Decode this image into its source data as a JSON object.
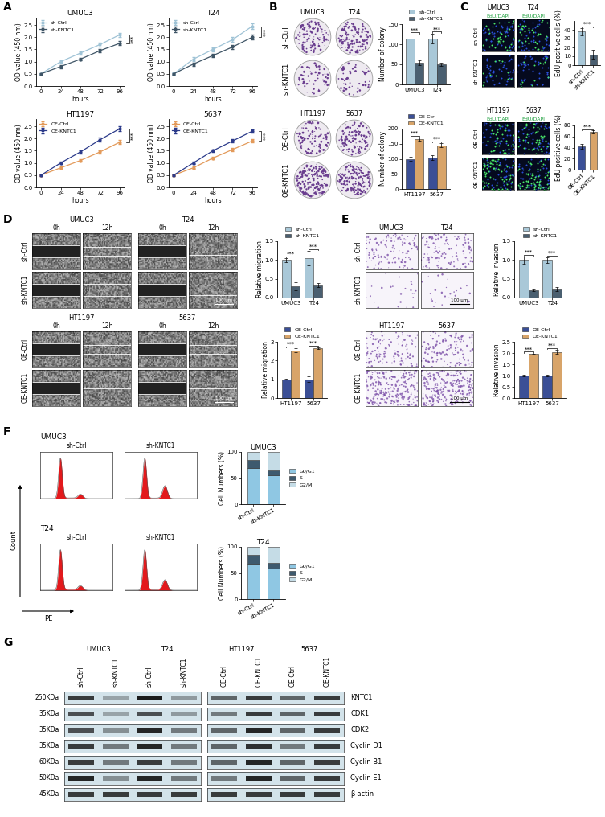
{
  "panel_labels": [
    "A",
    "B",
    "C",
    "D",
    "E",
    "F",
    "G"
  ],
  "chart_data": [
    {
      "type": "line",
      "title": "UMUC3",
      "x_label": "hours",
      "y_label": "OD value (450 nm)",
      "x": [
        0,
        24,
        48,
        72,
        96
      ],
      "xlim": [
        -6,
        102
      ],
      "xticks": [
        0,
        24,
        48,
        72,
        96
      ],
      "ylim": [
        0,
        2.8
      ],
      "yticks": [
        {
          "value": 0,
          "label": "0.0"
        },
        0.5,
        {
          "value": 1,
          "label": "1.0"
        },
        1.5,
        {
          "value": 2,
          "label": "2.0"
        },
        2.5
      ],
      "legend": "upper left",
      "annotations": [
        "***"
      ],
      "series": [
        {
          "name": "sh-Ctrl",
          "color": "#9fc3d6",
          "marker": "o",
          "values": [
            0.5,
            1.0,
            1.35,
            1.7,
            2.1
          ],
          "errors": [
            0.04,
            0.06,
            0.07,
            0.08,
            0.09
          ]
        },
        {
          "name": "sh-KNTC1",
          "color": "#3f5566",
          "marker": "o",
          "values": [
            0.5,
            0.8,
            1.1,
            1.45,
            1.75
          ],
          "errors": [
            0.04,
            0.06,
            0.06,
            0.07,
            0.08
          ]
        }
      ]
    },
    {
      "type": "line",
      "title": "T24",
      "x_label": "hours",
      "y_label": "OD value (450 nm)",
      "x": [
        0,
        24,
        48,
        72,
        96
      ],
      "xlim": [
        -6,
        102
      ],
      "xticks": [
        0,
        24,
        48,
        72,
        96
      ],
      "ylim": [
        0,
        2.8
      ],
      "yticks": [
        {
          "value": 0,
          "label": "0.0"
        },
        0.5,
        {
          "value": 1,
          "label": "1.0"
        },
        1.5,
        {
          "value": 2,
          "label": "2.0"
        },
        2.5
      ],
      "legend": "upper left",
      "annotations": [
        "***"
      ],
      "series": [
        {
          "name": "sh-Ctrl",
          "color": "#9fc3d6",
          "marker": "o",
          "values": [
            0.5,
            1.1,
            1.5,
            1.9,
            2.45
          ],
          "errors": [
            0.05,
            0.08,
            0.09,
            0.1,
            0.12
          ]
        },
        {
          "name": "sh-KNTC1",
          "color": "#3f5566",
          "marker": "o",
          "values": [
            0.5,
            0.9,
            1.25,
            1.6,
            2.0
          ],
          "errors": [
            0.04,
            0.07,
            0.08,
            0.08,
            0.1
          ]
        }
      ]
    },
    {
      "type": "line",
      "title": "HT1197",
      "x_label": "hours",
      "y_label": "OD value (450 nm)",
      "x": [
        0,
        24,
        48,
        72,
        96
      ],
      "xlim": [
        -6,
        102
      ],
      "xticks": [
        0,
        24,
        48,
        72,
        96
      ],
      "ylim": [
        0,
        2.8
      ],
      "yticks": [
        {
          "value": 0,
          "label": "0.0"
        },
        0.5,
        {
          "value": 1,
          "label": "1.0"
        },
        1.5,
        {
          "value": 2,
          "label": "2.0"
        },
        2.5
      ],
      "legend": "upper left",
      "annotations": [
        "***"
      ],
      "series": [
        {
          "name": "OE-Ctrl",
          "color": "#e39a5a",
          "marker": "o",
          "values": [
            0.5,
            0.8,
            1.1,
            1.45,
            1.85
          ],
          "errors": [
            0.04,
            0.05,
            0.06,
            0.07,
            0.08
          ]
        },
        {
          "name": "OE-KNTC1",
          "color": "#2b3a8a",
          "marker": "o",
          "values": [
            0.5,
            1.0,
            1.45,
            1.95,
            2.4
          ],
          "errors": [
            0.04,
            0.06,
            0.07,
            0.08,
            0.1
          ]
        }
      ]
    },
    {
      "type": "line",
      "title": "5637",
      "x_label": "hours",
      "y_label": "OD value (450 nm)",
      "x": [
        0,
        24,
        48,
        72,
        96
      ],
      "xlim": [
        -6,
        102
      ],
      "xticks": [
        0,
        24,
        48,
        72,
        96
      ],
      "ylim": [
        0,
        2.8
      ],
      "yticks": [
        {
          "value": 0,
          "label": "0.0"
        },
        0.5,
        {
          "value": 1,
          "label": "1.0"
        },
        1.5,
        {
          "value": 2,
          "label": "2.0"
        },
        2.5
      ],
      "legend": "upper left",
      "annotations": [
        "***"
      ],
      "series": [
        {
          "name": "OE-Ctrl",
          "color": "#e39a5a",
          "marker": "o",
          "values": [
            0.5,
            0.8,
            1.2,
            1.55,
            1.9
          ],
          "errors": [
            0.04,
            0.05,
            0.06,
            0.06,
            0.07
          ]
        },
        {
          "name": "OE-KNTC1",
          "color": "#2b3a8a",
          "marker": "o",
          "values": [
            0.5,
            1.0,
            1.5,
            1.9,
            2.3
          ],
          "errors": [
            0.04,
            0.05,
            0.06,
            0.07,
            0.06
          ]
        }
      ]
    },
    {
      "type": "bar",
      "y_label": "Number of colony",
      "categories": [
        "UMUC3",
        "T24"
      ],
      "ylim": [
        0,
        150
      ],
      "yticks": [
        0,
        50,
        100,
        150
      ],
      "legend": "top",
      "annotations": [
        "***",
        "***"
      ],
      "series": [
        {
          "name": "sh-Ctrl",
          "color": "#a9c8d8",
          "values": [
            115,
            115
          ],
          "errors": [
            10,
            12
          ]
        },
        {
          "name": "sh-KNTC1",
          "color": "#4a5f70",
          "values": [
            55,
            50
          ],
          "errors": [
            6,
            4
          ]
        }
      ]
    },
    {
      "type": "bar",
      "y_label": "Number of colony",
      "categories": [
        "HT1197",
        "5637"
      ],
      "ylim": [
        0,
        200
      ],
      "yticks": [
        0,
        50,
        100,
        150,
        200
      ],
      "legend": "top",
      "annotations": [
        "***",
        "***"
      ],
      "series": [
        {
          "name": "OE-Ctrl",
          "color": "#3b4f96",
          "values": [
            100,
            105
          ],
          "errors": [
            6,
            8
          ]
        },
        {
          "name": "OE-KNTC1",
          "color": "#d8a469",
          "values": [
            165,
            145
          ],
          "errors": [
            5,
            6
          ]
        }
      ]
    },
    {
      "type": "bar",
      "y_label": "EdU positive cells (%)",
      "categories": [
        "sh-Ctrl",
        "sh-KNTC1"
      ],
      "values": [
        38,
        12
      ],
      "errors": [
        4,
        5
      ],
      "colors": [
        "#a9c8d8",
        "#4a5f70"
      ],
      "ylim": [
        0,
        50
      ],
      "yticks": [
        0,
        10,
        20,
        30,
        40
      ],
      "annotations": [
        "***"
      ]
    },
    {
      "type": "bar",
      "y_label": "EdU positive cells (%)",
      "categories": [
        "OE-Ctrl",
        "OE-KNTC1"
      ],
      "values": [
        42,
        68
      ],
      "errors": [
        4,
        3
      ],
      "colors": [
        "#3b4f96",
        "#d8a469"
      ],
      "ylim": [
        0,
        80
      ],
      "yticks": [
        0,
        20,
        40,
        60,
        80
      ],
      "annotations": [
        "***"
      ]
    },
    {
      "type": "bar",
      "y_label": "Relative migration",
      "categories": [
        "UMUC3",
        "T24"
      ],
      "ylim": [
        0,
        1.5
      ],
      "yticks": [
        {
          "value": 0,
          "label": "0.0"
        },
        0.5,
        {
          "value": 1,
          "label": "1.0"
        },
        1.5
      ],
      "legend": "top",
      "annotations": [
        "***",
        "***"
      ],
      "series": [
        {
          "name": "sh-Ctrl",
          "color": "#a9c8d8",
          "values": [
            1.0,
            1.05
          ],
          "errors": [
            0.05,
            0.2
          ]
        },
        {
          "name": "sh-KNTC1",
          "color": "#4a5f70",
          "values": [
            0.3,
            0.33
          ],
          "errors": [
            0.1,
            0.05
          ]
        }
      ]
    },
    {
      "type": "bar",
      "y_label": "Relative migration",
      "categories": [
        "HT1197",
        "5637"
      ],
      "ylim": [
        0,
        3
      ],
      "yticks": [
        0,
        1,
        2,
        3
      ],
      "legend": "top",
      "annotations": [
        "***",
        "***"
      ],
      "series": [
        {
          "name": "OE-Ctrl",
          "color": "#3b4f96",
          "values": [
            1.0,
            1.0
          ],
          "errors": [
            0.03,
            0.15
          ]
        },
        {
          "name": "OE-KNTC1",
          "color": "#d8a469",
          "values": [
            2.55,
            2.65
          ],
          "errors": [
            0.1,
            0.05
          ]
        }
      ]
    },
    {
      "type": "bar",
      "y_label": "Relative invasion",
      "categories": [
        "UMUC3",
        "T24"
      ],
      "ylim": [
        0,
        1.5
      ],
      "yticks": [
        {
          "value": 0,
          "label": "0.0"
        },
        0.5,
        {
          "value": 1,
          "label": "1.0"
        },
        1.5
      ],
      "legend": "top",
      "annotations": [
        "***",
        "***"
      ],
      "series": [
        {
          "name": "sh-Ctrl",
          "color": "#a9c8d8",
          "values": [
            1.0,
            1.0
          ],
          "errors": [
            0.1,
            0.08
          ]
        },
        {
          "name": "sh-KNTC1",
          "color": "#4a5f70",
          "values": [
            0.2,
            0.22
          ],
          "errors": [
            0.02,
            0.05
          ]
        }
      ]
    },
    {
      "type": "bar",
      "y_label": "Relative invasion",
      "categories": [
        "HT1197",
        "5637"
      ],
      "ylim": [
        0,
        2.5
      ],
      "yticks": [
        {
          "value": 0,
          "label": "0.0"
        },
        0.5,
        {
          "value": 1,
          "label": "1.0"
        },
        1.5,
        {
          "value": 2,
          "label": "2.0"
        },
        2.5
      ],
      "legend": "top",
      "annotations": [
        "***",
        "***"
      ],
      "series": [
        {
          "name": "OE-Ctrl",
          "color": "#3b4f96",
          "values": [
            1.0,
            1.0
          ],
          "errors": [
            0.02,
            0.02
          ]
        },
        {
          "name": "OE-KNTC1",
          "color": "#d8a469",
          "values": [
            1.95,
            2.05
          ],
          "errors": [
            0.03,
            0.1
          ]
        }
      ]
    },
    {
      "type": "bar",
      "stacked": true,
      "title": "UMUC3",
      "y_label": "Cell Numbers (%)",
      "categories": [
        "sh-Ctrl",
        "sh-KNTC1"
      ],
      "ylim": [
        0,
        100
      ],
      "yticks": [
        0,
        50,
        100
      ],
      "legend": "right",
      "series": [
        {
          "name": "G0/G1",
          "color": "#8fc7e3",
          "values": [
            70,
            55
          ]
        },
        {
          "name": "S",
          "color": "#3e5a6e",
          "values": [
            15,
            10
          ]
        },
        {
          "name": "G2/M",
          "color": "#c5dce6",
          "values": [
            15,
            35
          ]
        }
      ]
    },
    {
      "type": "bar",
      "stacked": true,
      "title": "T24",
      "y_label": "Cell Numbers (%)",
      "categories": [
        "sh-Ctrl",
        "sh-KNTC1"
      ],
      "ylim": [
        0,
        100
      ],
      "yticks": [
        0,
        50,
        100
      ],
      "legend": "right",
      "series": [
        {
          "name": "G0/G1",
          "color": "#8fc7e3",
          "values": [
            68,
            58
          ]
        },
        {
          "name": "S",
          "color": "#3e5a6e",
          "values": [
            17,
            12
          ]
        },
        {
          "name": "G2/M",
          "color": "#c5dce6",
          "values": [
            15,
            30
          ]
        }
      ]
    }
  ],
  "colony_images": [
    {
      "columns": [
        "UMUC3",
        "T24"
      ],
      "rows": [
        "sh-Ctrl",
        "sh-KNTC1"
      ]
    },
    {
      "columns": [
        "HT1197",
        "5637"
      ],
      "rows": [
        "OE-Ctrl",
        "OE-KNTC1"
      ]
    }
  ],
  "edu_images": [
    {
      "columns": [
        "UMUC3",
        "T24"
      ],
      "stain": "EdU/DAPI",
      "rows": [
        "sh-Ctrl",
        "sh-KNTC1"
      ]
    },
    {
      "columns": [
        "HT1197",
        "5637"
      ],
      "stain": "EdU/DAPI",
      "rows": [
        "OE-Ctrl",
        "OE-KNTC1"
      ]
    }
  ],
  "wound_images": [
    {
      "columns": [
        "UMUC3",
        "T24"
      ],
      "times": [
        "0h",
        "12h"
      ],
      "rows": [
        "sh-Ctrl",
        "sh-KNTC1"
      ],
      "scale_bar": "100 μm"
    },
    {
      "columns": [
        "HT1197",
        "5637"
      ],
      "times": [
        "0h",
        "12h"
      ],
      "rows": [
        "OE-Ctrl",
        "OE-KNTC1"
      ],
      "scale_bar": "100 μm"
    }
  ],
  "invasion_images": [
    {
      "columns": [
        "UMUC3",
        "T24"
      ],
      "rows": [
        "sh-Ctrl",
        "sh-KNTC1"
      ],
      "scale_bar": "100 μm"
    },
    {
      "columns": [
        "HT1197",
        "5637"
      ],
      "rows": [
        "OE-Ctrl",
        "OE-KNTC1"
      ],
      "scale_bar": "100 μm"
    }
  ],
  "flow_panels": {
    "x_label": "PE",
    "y_label": "Count",
    "groups": [
      {
        "title": "UMUC3",
        "samples": [
          "sh-Ctrl",
          "sh-KNTC1"
        ]
      },
      {
        "title": "T24",
        "samples": [
          "sh-Ctrl",
          "sh-KNTC1"
        ]
      }
    ]
  },
  "western_blot": {
    "cell_lines": [
      "UMUC3",
      "T24",
      "HT1197",
      "5637"
    ],
    "lanes": [
      "sh-Ctrl",
      "sh-KNTC1",
      "sh-Ctrl",
      "sh-KNTC1",
      "OE-Ctrl",
      "OE-KNTC1",
      "OE-Ctrl",
      "OE-KNTC1"
    ],
    "proteins": [
      {
        "size": "250KDa",
        "name": "KNTC1",
        "bands": [
          0.8,
          0.3,
          0.95,
          0.35,
          0.6,
          0.8,
          0.6,
          0.8
        ]
      },
      {
        "size": "35KDa",
        "name": "CDK1",
        "bands": [
          0.7,
          0.3,
          0.7,
          0.35,
          0.5,
          0.8,
          0.6,
          0.8
        ]
      },
      {
        "size": "35KDa",
        "name": "CDK2",
        "bands": [
          0.7,
          0.4,
          0.9,
          0.5,
          0.6,
          0.9,
          0.6,
          0.8
        ]
      },
      {
        "size": "35KDa",
        "name": "Cyclin D1",
        "bands": [
          0.8,
          0.5,
          0.9,
          0.5,
          0.6,
          0.85,
          0.5,
          0.8
        ]
      },
      {
        "size": "60KDa",
        "name": "Cyclin B1",
        "bands": [
          0.8,
          0.5,
          0.8,
          0.5,
          0.6,
          0.9,
          0.6,
          0.8
        ]
      },
      {
        "size": "50KDa",
        "name": "Cyclin E1",
        "bands": [
          0.9,
          0.4,
          0.9,
          0.5,
          0.5,
          0.9,
          0.6,
          0.8
        ]
      },
      {
        "size": "45KDa",
        "name": "β-actin",
        "bands": [
          0.8,
          0.8,
          0.8,
          0.8,
          0.8,
          0.8,
          0.8,
          0.8
        ]
      }
    ]
  }
}
